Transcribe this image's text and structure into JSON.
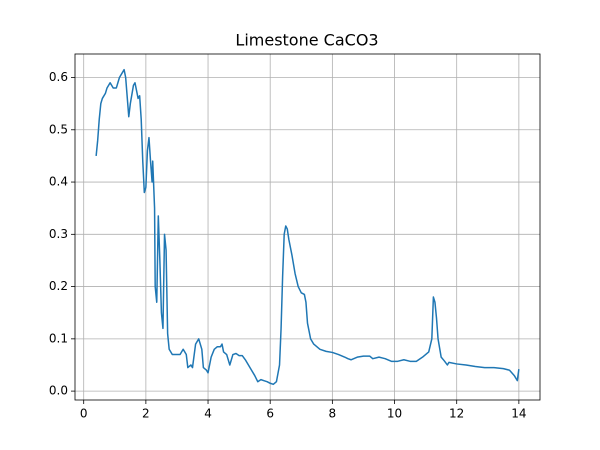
{
  "chart_data": {
    "type": "line",
    "title": "Limestone CaCO3",
    "x": [
      0.4,
      0.45,
      0.5,
      0.55,
      0.6,
      0.7,
      0.75,
      0.85,
      0.95,
      1.05,
      1.15,
      1.3,
      1.35,
      1.45,
      1.5,
      1.6,
      1.65,
      1.75,
      1.8,
      1.85,
      1.9,
      1.95,
      2.0,
      2.05,
      2.1,
      2.15,
      2.2,
      2.22,
      2.28,
      2.3,
      2.35,
      2.4,
      2.45,
      2.5,
      2.55,
      2.6,
      2.65,
      2.7,
      2.75,
      2.85,
      3.0,
      3.1,
      3.2,
      3.3,
      3.35,
      3.45,
      3.5,
      3.6,
      3.7,
      3.8,
      3.85,
      3.95,
      4.0,
      4.1,
      4.2,
      4.3,
      4.4,
      4.45,
      4.5,
      4.6,
      4.7,
      4.8,
      4.9,
      5.0,
      5.1,
      5.2,
      5.3,
      5.4,
      5.5,
      5.6,
      5.7,
      5.8,
      5.9,
      6.0,
      6.1,
      6.2,
      6.3,
      6.35,
      6.4,
      6.45,
      6.5,
      6.55,
      6.6,
      6.7,
      6.8,
      6.9,
      7.0,
      7.1,
      7.15,
      7.2,
      7.3,
      7.4,
      7.6,
      7.8,
      8.0,
      8.2,
      8.4,
      8.5,
      8.6,
      8.8,
      9.0,
      9.2,
      9.3,
      9.5,
      9.7,
      9.9,
      10.1,
      10.3,
      10.5,
      10.7,
      10.9,
      11.1,
      11.2,
      11.25,
      11.3,
      11.35,
      11.4,
      11.5,
      11.6,
      11.7,
      11.75,
      12.0,
      12.3,
      12.6,
      12.9,
      13.2,
      13.5,
      13.7,
      13.85,
      13.95,
      14.0
    ],
    "series": [
      {
        "color": "#1f77b4",
        "values": [
          0.45,
          0.48,
          0.52,
          0.55,
          0.56,
          0.57,
          0.58,
          0.59,
          0.58,
          0.58,
          0.6,
          0.615,
          0.6,
          0.525,
          0.55,
          0.585,
          0.59,
          0.56,
          0.565,
          0.52,
          0.44,
          0.38,
          0.39,
          0.46,
          0.485,
          0.44,
          0.4,
          0.44,
          0.35,
          0.2,
          0.17,
          0.335,
          0.25,
          0.15,
          0.12,
          0.3,
          0.27,
          0.11,
          0.08,
          0.07,
          0.07,
          0.07,
          0.08,
          0.07,
          0.045,
          0.05,
          0.045,
          0.09,
          0.1,
          0.08,
          0.045,
          0.04,
          0.035,
          0.065,
          0.08,
          0.085,
          0.085,
          0.09,
          0.075,
          0.07,
          0.05,
          0.07,
          0.072,
          0.068,
          0.068,
          0.06,
          0.05,
          0.04,
          0.03,
          0.018,
          0.022,
          0.02,
          0.018,
          0.015,
          0.013,
          0.018,
          0.05,
          0.12,
          0.22,
          0.3,
          0.316,
          0.31,
          0.29,
          0.26,
          0.225,
          0.2,
          0.188,
          0.185,
          0.17,
          0.13,
          0.1,
          0.09,
          0.08,
          0.076,
          0.074,
          0.07,
          0.065,
          0.062,
          0.06,
          0.065,
          0.067,
          0.067,
          0.062,
          0.065,
          0.062,
          0.057,
          0.057,
          0.06,
          0.057,
          0.057,
          0.065,
          0.075,
          0.1,
          0.18,
          0.17,
          0.14,
          0.1,
          0.065,
          0.058,
          0.05,
          0.055,
          0.052,
          0.05,
          0.047,
          0.045,
          0.045,
          0.043,
          0.04,
          0.03,
          0.02,
          0.042
        ]
      }
    ],
    "xlim": [
      -0.28,
      14.68
    ],
    "xticks": [
      0,
      2,
      4,
      6,
      8,
      10,
      12,
      14
    ],
    "ylim": [
      -0.017,
      0.645
    ],
    "yticks": [
      {
        "value": 0,
        "label": "0.0"
      },
      0.1,
      0.2,
      0.3,
      0.4,
      0.5,
      0.6
    ],
    "grid": true
  }
}
